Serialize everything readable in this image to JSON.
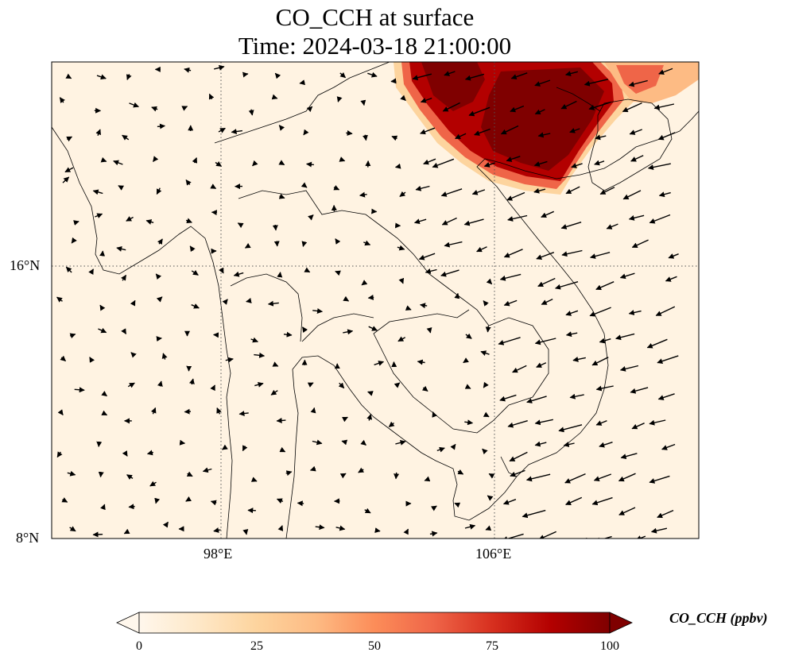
{
  "title": {
    "line1": "CO_CCH at surface",
    "line2": "Time: 2024-03-18 21:00:00"
  },
  "axes": {
    "lon_range": [
      93.0,
      112.0
    ],
    "lat_range": [
      8.0,
      22.0
    ],
    "x_ticks": [
      {
        "value": 98,
        "label": "98°E"
      },
      {
        "value": 106,
        "label": "106°E"
      }
    ],
    "y_ticks": [
      {
        "value": 16,
        "label": "16°N"
      },
      {
        "value": 8,
        "label": "8°N"
      }
    ],
    "gridlines": "dotted"
  },
  "colorbar": {
    "label": "CO_CCH (ppbv)",
    "range": [
      0,
      100
    ],
    "extend": "both",
    "colormap": "OrRd",
    "colors": [
      "#fff7ec",
      "#fee8c8",
      "#fdd49e",
      "#fdbb84",
      "#fc8d59",
      "#ef6548",
      "#d7301f",
      "#b30000",
      "#7f0000"
    ],
    "ticks": [
      {
        "value": 0,
        "label": "0"
      },
      {
        "value": 25,
        "label": "25"
      },
      {
        "value": 50,
        "label": "50"
      },
      {
        "value": 75,
        "label": "75"
      },
      {
        "value": 100,
        "label": "100"
      }
    ]
  },
  "plume": {
    "description": "High CO concentration over northern Vietnam / southern China",
    "core_value": 100,
    "lon_extent": [
      103.5,
      111.5
    ],
    "lat_extent": [
      18.0,
      22.0
    ]
  },
  "wind_field": {
    "pattern": "northeasterly monsoon flow along the Vietnam coast and Gulf of Tonkin, weak variable winds over the mainland"
  }
}
